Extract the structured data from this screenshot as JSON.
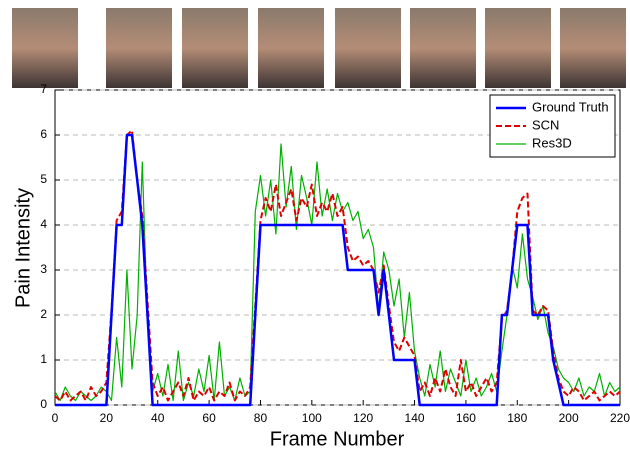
{
  "chart_data": {
    "type": "line",
    "xlabel": "Frame Number",
    "ylabel": "Pain Intensity",
    "x": [
      0,
      2,
      4,
      6,
      8,
      10,
      12,
      14,
      16,
      18,
      20,
      22,
      24,
      26,
      28,
      30,
      32,
      34,
      36,
      38,
      40,
      42,
      44,
      46,
      48,
      50,
      52,
      54,
      56,
      58,
      60,
      62,
      64,
      66,
      68,
      70,
      72,
      74,
      76,
      78,
      80,
      82,
      84,
      86,
      88,
      90,
      92,
      94,
      96,
      98,
      100,
      102,
      104,
      106,
      108,
      110,
      112,
      114,
      116,
      118,
      120,
      122,
      124,
      126,
      128,
      130,
      132,
      134,
      136,
      138,
      140,
      142,
      144,
      146,
      148,
      150,
      152,
      154,
      156,
      158,
      160,
      162,
      164,
      166,
      168,
      170,
      172,
      174,
      176,
      178,
      180,
      182,
      184,
      186,
      188,
      190,
      192,
      194,
      196,
      198,
      200,
      202,
      204,
      206,
      208,
      210,
      212,
      214,
      216,
      218,
      220
    ],
    "series": [
      {
        "name": "Ground Truth",
        "color": "#0000ff",
        "values": [
          0,
          0,
          0,
          0,
          0,
          0,
          0,
          0,
          0,
          0,
          0,
          2,
          4,
          4,
          6,
          6,
          5,
          4,
          2,
          0,
          0,
          0,
          0,
          0,
          0,
          0,
          0,
          0,
          0,
          0,
          0,
          0,
          0,
          0,
          0,
          0,
          0,
          0,
          0,
          2,
          4,
          4,
          4,
          4,
          4,
          4,
          4,
          4,
          4,
          4,
          4,
          4,
          4,
          4,
          4,
          4,
          4,
          3,
          3,
          3,
          3,
          3,
          3,
          2,
          3,
          2,
          1,
          1,
          1,
          1,
          1,
          0,
          0,
          0,
          0,
          0,
          0,
          0,
          0,
          0,
          0,
          0,
          0,
          0,
          0,
          0,
          0,
          2,
          2,
          3,
          4,
          4,
          4,
          2,
          2,
          2,
          2,
          1,
          0.5,
          0,
          0,
          0,
          0,
          0,
          0,
          0,
          0,
          0,
          0,
          0,
          0
        ]
      },
      {
        "name": "SCN",
        "color": "#e00000",
        "values": [
          0.2,
          0.1,
          0.3,
          0.1,
          0.2,
          0.3,
          0.1,
          0.4,
          0.2,
          0.3,
          0.5,
          2.1,
          4.1,
          4.3,
          6.0,
          6.1,
          5.0,
          4.2,
          2.3,
          0.5,
          0.2,
          0.4,
          0.1,
          0.3,
          0.5,
          0.2,
          0.6,
          0.1,
          0.3,
          0.2,
          0.4,
          0.1,
          0.3,
          0.2,
          0.5,
          0.1,
          0.3,
          0.2,
          0.4,
          2.2,
          4.1,
          4.6,
          4.3,
          4.9,
          4.2,
          4.5,
          4.8,
          4.1,
          4.6,
          4.4,
          4.9,
          4.2,
          4.5,
          4.3,
          4.7,
          4.2,
          4.4,
          3.5,
          3.2,
          3.3,
          3.1,
          3.2,
          3.0,
          2.5,
          3.1,
          2.2,
          1.4,
          1.2,
          1.5,
          1.3,
          1.1,
          0.3,
          0.5,
          0.2,
          0.6,
          0.3,
          0.8,
          0.4,
          0.2,
          1.0,
          0.3,
          0.5,
          0.2,
          0.4,
          0.6,
          0.3,
          0.5,
          1.9,
          2.1,
          3.0,
          4.3,
          4.6,
          4.7,
          2.1,
          2.0,
          2.2,
          2.1,
          1.2,
          0.6,
          0.3,
          0.2,
          0.4,
          0.3,
          0.1,
          0.2,
          0.3,
          0.1,
          0.2,
          0.3,
          0.2,
          0.3
        ]
      },
      {
        "name": "Res3D",
        "color": "#00b000",
        "values": [
          0.3,
          0.1,
          0.4,
          0.2,
          0.1,
          0.3,
          0.2,
          0.1,
          0.2,
          0.4,
          0.3,
          0.1,
          1.5,
          0.4,
          3.0,
          0.8,
          2.0,
          5.4,
          1.8,
          0.3,
          0.7,
          0.2,
          0.9,
          0.1,
          1.2,
          0.1,
          0.5,
          0.2,
          0.8,
          0.3,
          1.1,
          0.1,
          1.4,
          0.2,
          0.4,
          0.1,
          0.6,
          0.2,
          0.3,
          4.3,
          5.1,
          4.2,
          5.0,
          3.8,
          5.8,
          4.4,
          5.3,
          3.9,
          5.1,
          4.6,
          4.0,
          5.4,
          4.2,
          4.8,
          4.1,
          4.7,
          4.3,
          4.5,
          4.1,
          4.3,
          3.7,
          3.9,
          3.5,
          2.1,
          3.4,
          3.0,
          2.2,
          2.8,
          1.5,
          2.5,
          1.2,
          0.6,
          0.2,
          0.9,
          0.4,
          1.2,
          0.3,
          0.8,
          0.5,
          0.2,
          1.0,
          0.3,
          0.6,
          0.2,
          0.4,
          0.7,
          0.3,
          1.2,
          2.0,
          3.1,
          2.6,
          3.8,
          2.8,
          2.4,
          1.9,
          2.2,
          1.6,
          1.3,
          0.8,
          0.6,
          0.5,
          0.3,
          0.6,
          0.2,
          0.4,
          0.3,
          0.7,
          0.2,
          0.5,
          0.3,
          0.4
        ]
      }
    ],
    "xlim": [
      0,
      220
    ],
    "xticks": [
      0,
      20,
      40,
      60,
      80,
      100,
      120,
      140,
      160,
      180,
      200,
      220
    ],
    "ylim": [
      0,
      7
    ],
    "yticks": [
      0,
      1,
      2,
      3,
      4,
      5,
      6,
      7
    ],
    "grid": true,
    "legend": "top-right"
  }
}
